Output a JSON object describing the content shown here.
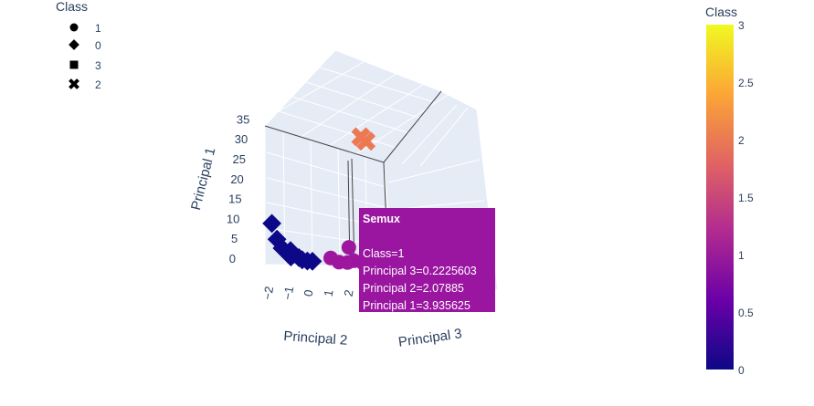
{
  "legend": {
    "title": "Class",
    "items": [
      {
        "label": "1",
        "symbol": "circle"
      },
      {
        "label": "0",
        "symbol": "diamond"
      },
      {
        "label": "3",
        "symbol": "square"
      },
      {
        "label": "2",
        "symbol": "x"
      }
    ]
  },
  "colorbar": {
    "title": "Class",
    "ticks": [
      "3",
      "2.5",
      "2",
      "1.5",
      "1",
      "0.5",
      "0"
    ],
    "colors": [
      "#0d0887",
      "#6a00a8",
      "#b12a90",
      "#e16462",
      "#fca636",
      "#f0f921"
    ]
  },
  "tooltip": {
    "title": "Semux",
    "lines": [
      "Class=1",
      "Principal 3=0.2225603",
      "Principal 2=2.07885",
      "Principal 1=3.935625"
    ],
    "color": "#9a15a0"
  },
  "chart_data": {
    "type": "scatter",
    "mode": "3d",
    "axes": {
      "x": {
        "title": "Principal 3"
      },
      "y": {
        "title": "Principal 2",
        "ticks": [
          "−2",
          "−1",
          "0",
          "1",
          "2"
        ]
      },
      "z": {
        "title": "Principal 1",
        "ticks": [
          "0",
          "5",
          "10",
          "15",
          "20",
          "25",
          "30",
          "35"
        ]
      }
    },
    "series": [
      {
        "name": "0",
        "symbol": "diamond",
        "color": "#0d0887",
        "points": [
          [
            -0.5,
            -1.8,
            8.5
          ],
          [
            -0.4,
            -1.6,
            5.0
          ],
          [
            -0.3,
            -1.4,
            3.0
          ],
          [
            -0.2,
            -1.0,
            2.5
          ],
          [
            -0.2,
            -0.8,
            1.8
          ],
          [
            -0.1,
            -0.6,
            1.0
          ],
          [
            -0.1,
            -0.4,
            0.6
          ],
          [
            0.0,
            -1.2,
            0.8
          ],
          [
            0.0,
            -0.2,
            0.3
          ],
          [
            0.1,
            0.0,
            0.2
          ]
        ]
      },
      {
        "name": "1",
        "symbol": "circle",
        "color": "#9c179e",
        "points": [
          [
            0.2,
            1.0,
            1.2
          ],
          [
            0.2,
            1.5,
            0.5
          ],
          [
            0.22,
            2.08,
            3.94
          ],
          [
            0.3,
            2.3,
            1.0
          ],
          [
            0.4,
            1.8,
            0.3
          ]
        ]
      },
      {
        "name": "2",
        "symbol": "x",
        "color": "#ed7953",
        "points": [
          [
            0.5,
            2.5,
            28.0
          ],
          [
            0.6,
            2.7,
            27.0
          ]
        ]
      }
    ],
    "hover": {
      "series": "1",
      "name": "Semux",
      "class": 1,
      "principal_3": 0.2225603,
      "principal_2": 2.07885,
      "principal_1": 3.935625
    }
  }
}
